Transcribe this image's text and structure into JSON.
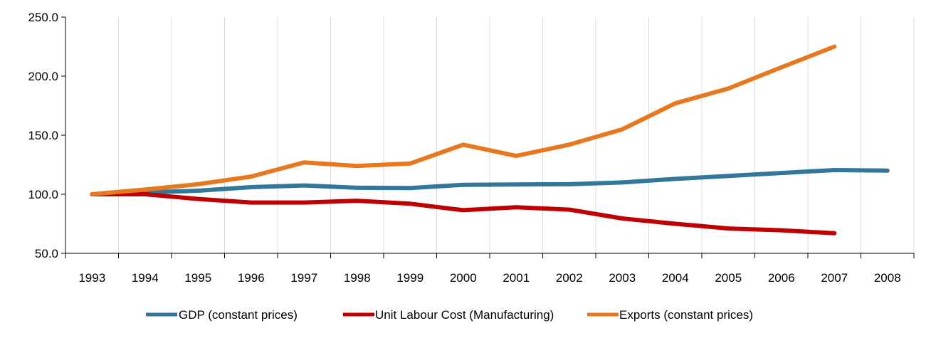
{
  "chart_data": {
    "type": "line",
    "title": "",
    "xlabel": "",
    "ylabel": "",
    "categories": [
      "1993",
      "1994",
      "1995",
      "1996",
      "1997",
      "1998",
      "1999",
      "2000",
      "2001",
      "2002",
      "2003",
      "2004",
      "2005",
      "2006",
      "2007",
      "2008"
    ],
    "ylim": [
      50,
      250
    ],
    "yticks": [
      "250.0",
      "200.0",
      "150.0",
      "100.0",
      "50.0"
    ],
    "ytick_values": [
      250,
      200,
      150,
      100,
      50
    ],
    "grid": "vertical",
    "legend_position": "bottom",
    "series": [
      {
        "name": "GDP (constant prices)",
        "color": "#31779a",
        "values": [
          100,
          101.5,
          103,
          106,
          107.5,
          105.5,
          105.3,
          108,
          108.3,
          108.5,
          110,
          113,
          115.5,
          118,
          120.5,
          120
        ]
      },
      {
        "name": "Unit Labour Cost (Manufacturing)",
        "color": "#c00000",
        "values": [
          100,
          100,
          96,
          93,
          93,
          94.5,
          92,
          86.5,
          89,
          87,
          79.5,
          75,
          71,
          69.5,
          67,
          null
        ]
      },
      {
        "name": "Exports (constant prices)",
        "color": "#e8781f",
        "values": [
          100,
          104,
          108.5,
          115,
          127,
          124,
          126,
          142,
          132.5,
          142,
          155,
          177,
          189.5,
          207.5,
          225,
          null
        ]
      }
    ]
  }
}
